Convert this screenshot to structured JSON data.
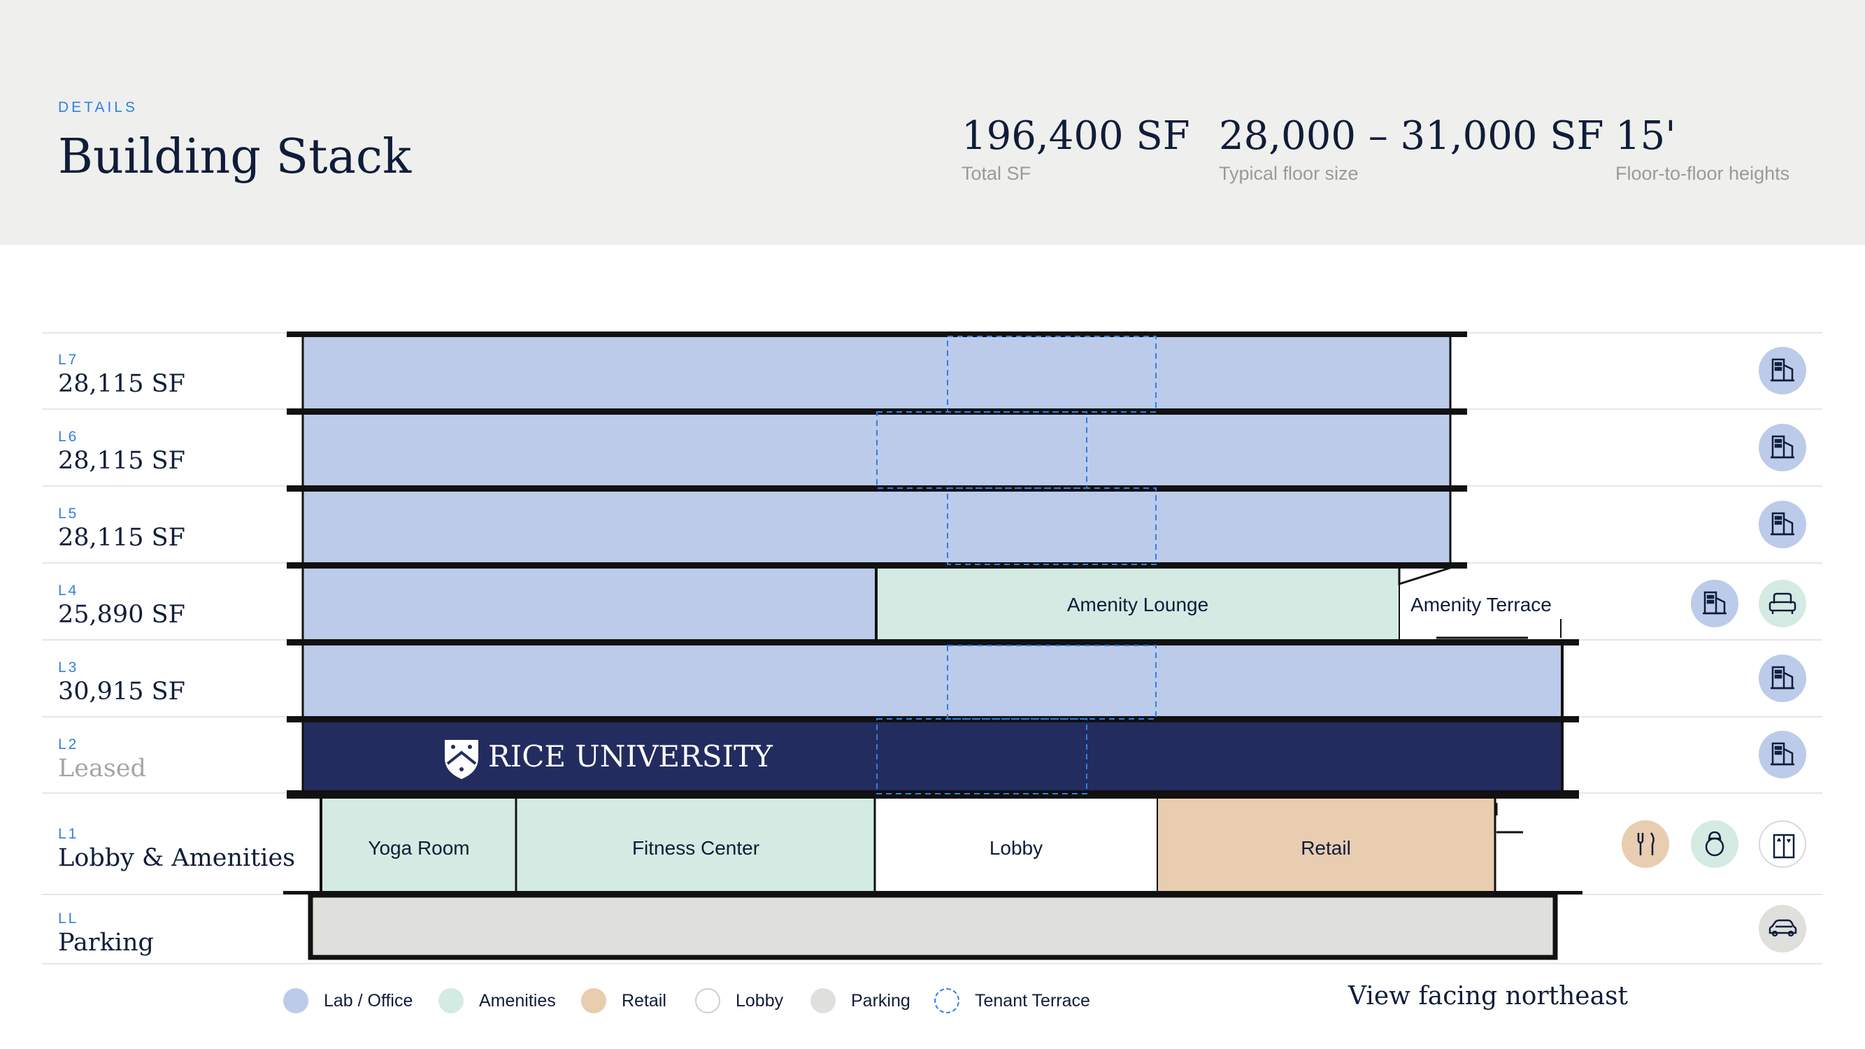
{
  "header": {
    "eyebrow": "DETAILS",
    "title": "Building Stack",
    "stats": [
      {
        "value": "196,400 SF",
        "label": "Total SF"
      },
      {
        "value": "28,000 – 31,000 SF",
        "label": "Typical floor size"
      },
      {
        "value": "15'",
        "label": "Floor-to-floor heights"
      }
    ]
  },
  "levels": [
    {
      "code": "L7",
      "area": "28,115 SF"
    },
    {
      "code": "L6",
      "area": "28,115 SF"
    },
    {
      "code": "L5",
      "area": "28,115 SF"
    },
    {
      "code": "L4",
      "area": "25,890 SF"
    },
    {
      "code": "L3",
      "area": "30,915 SF"
    },
    {
      "code": "L2",
      "area": "Leased"
    },
    {
      "code": "L1",
      "area": "Lobby & Amenities"
    },
    {
      "code": "LL",
      "area": "Parking"
    }
  ],
  "spaces": {
    "amenity_lounge": "Amenity Lounge",
    "amenity_terrace": "Amenity Terrace",
    "tenant": "RICE UNIVERSITY",
    "yoga": "Yoga Room",
    "fitness": "Fitness Center",
    "lobby": "Lobby",
    "retail": "Retail"
  },
  "icons": {
    "office": "office-building-icon",
    "lounge": "lounge-sofa-icon",
    "dining": "fork-knife-icon",
    "fitness": "kettlebell-icon",
    "elevator": "elevator-icon",
    "parking": "car-icon"
  },
  "legend": [
    {
      "label": "Lab / Office"
    },
    {
      "label": "Amenities"
    },
    {
      "label": "Retail"
    },
    {
      "label": "Lobby"
    },
    {
      "label": "Parking"
    },
    {
      "label": "Tenant Terrace"
    }
  ],
  "view_note": "View facing northeast",
  "colors": {
    "lab_office": "#bccbea",
    "amenities": "#d3ebe2",
    "retail": "#e8cdb0",
    "lobby": "#ffffff",
    "parking": "#dfdfdc",
    "tenant_terrace": "#2f7fe6",
    "tenant_floor": "#232c5f",
    "outline": "#111111"
  }
}
